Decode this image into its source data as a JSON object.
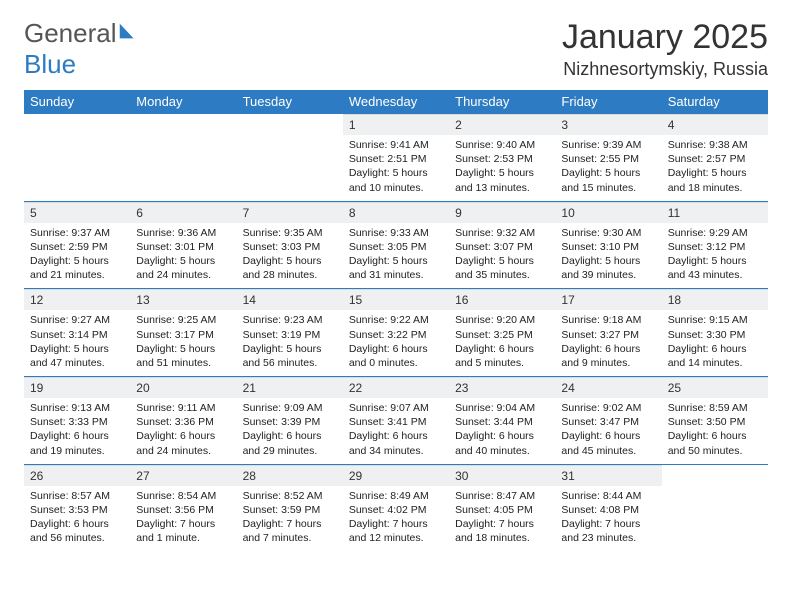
{
  "brand": {
    "word1": "General",
    "word2": "Blue"
  },
  "title": "January 2025",
  "location": "Nizhnesortymskiy, Russia",
  "colors": {
    "accent": "#2d7bc2",
    "headerbg": "#2d7bc2",
    "daynumbg": "#eef0f1",
    "bg": "#ffffff"
  },
  "day_labels": [
    "Sunday",
    "Monday",
    "Tuesday",
    "Wednesday",
    "Thursday",
    "Friday",
    "Saturday"
  ],
  "weeks": [
    [
      null,
      null,
      null,
      {
        "n": "1",
        "sr": "Sunrise: 9:41 AM",
        "ss": "Sunset: 2:51 PM",
        "d1": "Daylight: 5 hours",
        "d2": "and 10 minutes."
      },
      {
        "n": "2",
        "sr": "Sunrise: 9:40 AM",
        "ss": "Sunset: 2:53 PM",
        "d1": "Daylight: 5 hours",
        "d2": "and 13 minutes."
      },
      {
        "n": "3",
        "sr": "Sunrise: 9:39 AM",
        "ss": "Sunset: 2:55 PM",
        "d1": "Daylight: 5 hours",
        "d2": "and 15 minutes."
      },
      {
        "n": "4",
        "sr": "Sunrise: 9:38 AM",
        "ss": "Sunset: 2:57 PM",
        "d1": "Daylight: 5 hours",
        "d2": "and 18 minutes."
      }
    ],
    [
      {
        "n": "5",
        "sr": "Sunrise: 9:37 AM",
        "ss": "Sunset: 2:59 PM",
        "d1": "Daylight: 5 hours",
        "d2": "and 21 minutes."
      },
      {
        "n": "6",
        "sr": "Sunrise: 9:36 AM",
        "ss": "Sunset: 3:01 PM",
        "d1": "Daylight: 5 hours",
        "d2": "and 24 minutes."
      },
      {
        "n": "7",
        "sr": "Sunrise: 9:35 AM",
        "ss": "Sunset: 3:03 PM",
        "d1": "Daylight: 5 hours",
        "d2": "and 28 minutes."
      },
      {
        "n": "8",
        "sr": "Sunrise: 9:33 AM",
        "ss": "Sunset: 3:05 PM",
        "d1": "Daylight: 5 hours",
        "d2": "and 31 minutes."
      },
      {
        "n": "9",
        "sr": "Sunrise: 9:32 AM",
        "ss": "Sunset: 3:07 PM",
        "d1": "Daylight: 5 hours",
        "d2": "and 35 minutes."
      },
      {
        "n": "10",
        "sr": "Sunrise: 9:30 AM",
        "ss": "Sunset: 3:10 PM",
        "d1": "Daylight: 5 hours",
        "d2": "and 39 minutes."
      },
      {
        "n": "11",
        "sr": "Sunrise: 9:29 AM",
        "ss": "Sunset: 3:12 PM",
        "d1": "Daylight: 5 hours",
        "d2": "and 43 minutes."
      }
    ],
    [
      {
        "n": "12",
        "sr": "Sunrise: 9:27 AM",
        "ss": "Sunset: 3:14 PM",
        "d1": "Daylight: 5 hours",
        "d2": "and 47 minutes."
      },
      {
        "n": "13",
        "sr": "Sunrise: 9:25 AM",
        "ss": "Sunset: 3:17 PM",
        "d1": "Daylight: 5 hours",
        "d2": "and 51 minutes."
      },
      {
        "n": "14",
        "sr": "Sunrise: 9:23 AM",
        "ss": "Sunset: 3:19 PM",
        "d1": "Daylight: 5 hours",
        "d2": "and 56 minutes."
      },
      {
        "n": "15",
        "sr": "Sunrise: 9:22 AM",
        "ss": "Sunset: 3:22 PM",
        "d1": "Daylight: 6 hours",
        "d2": "and 0 minutes."
      },
      {
        "n": "16",
        "sr": "Sunrise: 9:20 AM",
        "ss": "Sunset: 3:25 PM",
        "d1": "Daylight: 6 hours",
        "d2": "and 5 minutes."
      },
      {
        "n": "17",
        "sr": "Sunrise: 9:18 AM",
        "ss": "Sunset: 3:27 PM",
        "d1": "Daylight: 6 hours",
        "d2": "and 9 minutes."
      },
      {
        "n": "18",
        "sr": "Sunrise: 9:15 AM",
        "ss": "Sunset: 3:30 PM",
        "d1": "Daylight: 6 hours",
        "d2": "and 14 minutes."
      }
    ],
    [
      {
        "n": "19",
        "sr": "Sunrise: 9:13 AM",
        "ss": "Sunset: 3:33 PM",
        "d1": "Daylight: 6 hours",
        "d2": "and 19 minutes."
      },
      {
        "n": "20",
        "sr": "Sunrise: 9:11 AM",
        "ss": "Sunset: 3:36 PM",
        "d1": "Daylight: 6 hours",
        "d2": "and 24 minutes."
      },
      {
        "n": "21",
        "sr": "Sunrise: 9:09 AM",
        "ss": "Sunset: 3:39 PM",
        "d1": "Daylight: 6 hours",
        "d2": "and 29 minutes."
      },
      {
        "n": "22",
        "sr": "Sunrise: 9:07 AM",
        "ss": "Sunset: 3:41 PM",
        "d1": "Daylight: 6 hours",
        "d2": "and 34 minutes."
      },
      {
        "n": "23",
        "sr": "Sunrise: 9:04 AM",
        "ss": "Sunset: 3:44 PM",
        "d1": "Daylight: 6 hours",
        "d2": "and 40 minutes."
      },
      {
        "n": "24",
        "sr": "Sunrise: 9:02 AM",
        "ss": "Sunset: 3:47 PM",
        "d1": "Daylight: 6 hours",
        "d2": "and 45 minutes."
      },
      {
        "n": "25",
        "sr": "Sunrise: 8:59 AM",
        "ss": "Sunset: 3:50 PM",
        "d1": "Daylight: 6 hours",
        "d2": "and 50 minutes."
      }
    ],
    [
      {
        "n": "26",
        "sr": "Sunrise: 8:57 AM",
        "ss": "Sunset: 3:53 PM",
        "d1": "Daylight: 6 hours",
        "d2": "and 56 minutes."
      },
      {
        "n": "27",
        "sr": "Sunrise: 8:54 AM",
        "ss": "Sunset: 3:56 PM",
        "d1": "Daylight: 7 hours",
        "d2": "and 1 minute."
      },
      {
        "n": "28",
        "sr": "Sunrise: 8:52 AM",
        "ss": "Sunset: 3:59 PM",
        "d1": "Daylight: 7 hours",
        "d2": "and 7 minutes."
      },
      {
        "n": "29",
        "sr": "Sunrise: 8:49 AM",
        "ss": "Sunset: 4:02 PM",
        "d1": "Daylight: 7 hours",
        "d2": "and 12 minutes."
      },
      {
        "n": "30",
        "sr": "Sunrise: 8:47 AM",
        "ss": "Sunset: 4:05 PM",
        "d1": "Daylight: 7 hours",
        "d2": "and 18 minutes."
      },
      {
        "n": "31",
        "sr": "Sunrise: 8:44 AM",
        "ss": "Sunset: 4:08 PM",
        "d1": "Daylight: 7 hours",
        "d2": "and 23 minutes."
      },
      null
    ]
  ]
}
